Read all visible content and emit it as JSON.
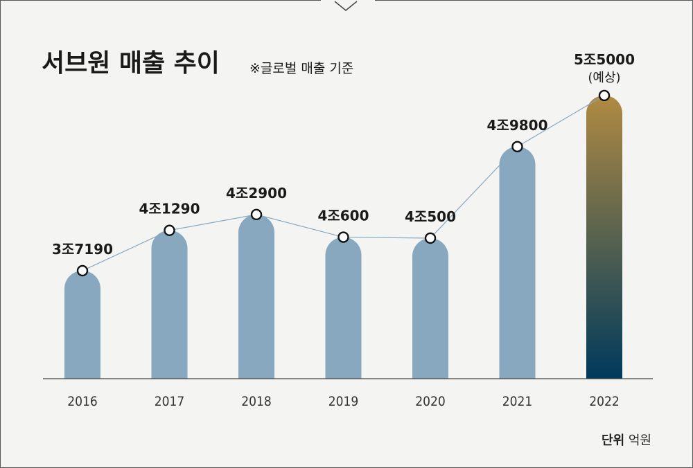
{
  "title": "서브원 매출 추이",
  "subtitle": "※글로벌 매출 기준",
  "unit": {
    "label": "단위",
    "value": "억원"
  },
  "colors": {
    "bar": "#87a8bf",
    "highlight_top": "#b08a42",
    "highlight_bottom": "#003a5c",
    "line": "#87a8bf",
    "axis": "#444444"
  },
  "chart_data": {
    "type": "bar",
    "categories": [
      "2016",
      "2017",
      "2018",
      "2019",
      "2020",
      "2021",
      "2022"
    ],
    "values": [
      37190,
      41290,
      42900,
      40600,
      40500,
      49800,
      55000
    ],
    "value_labels": [
      "3조7190",
      "4조1290",
      "4조2900",
      "4조600",
      "4조500",
      "4조9800",
      "5조5000"
    ],
    "notes": [
      "",
      "",
      "",
      "",
      "",
      "",
      "(예상)"
    ],
    "highlight_index": 6,
    "line_overlay": true
  }
}
